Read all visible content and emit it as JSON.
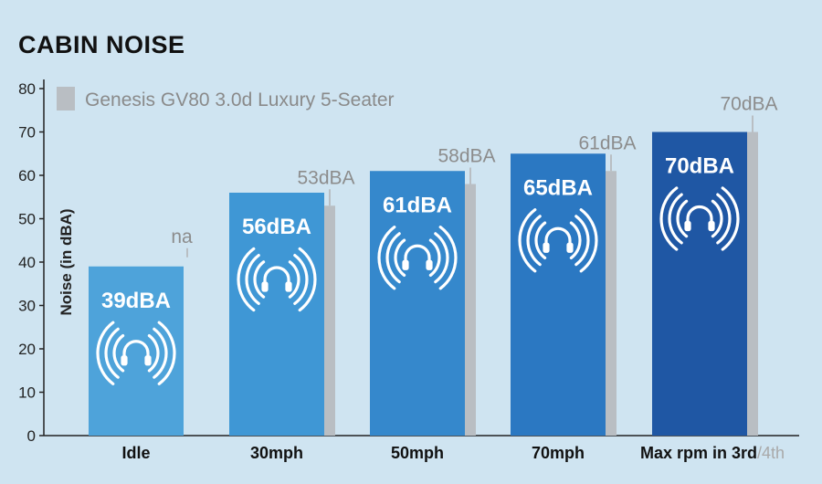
{
  "chart_data": {
    "type": "bar",
    "title": "CABIN NOISE",
    "ylabel": "Noise (in dBA)",
    "ylim": [
      0,
      80
    ],
    "yticks": [
      0,
      10,
      20,
      30,
      40,
      50,
      60,
      70,
      80
    ],
    "categories": [
      "Idle",
      "30mph",
      "50mph",
      "70mph",
      "Max rpm in 3rd"
    ],
    "category_suffix": {
      "index": 4,
      "text": "/4th"
    },
    "grid": false,
    "legend": {
      "position": "top-left"
    },
    "series": [
      {
        "values": [
          39,
          56,
          61,
          65,
          70
        ],
        "labels": [
          "39dBA",
          "56dBA",
          "61dBA",
          "65dBA",
          "70dBA"
        ],
        "colors": [
          "#4ea3da",
          "#3f97d5",
          "#3588cc",
          "#2b78c2",
          "#1f57a4"
        ]
      },
      {
        "name": "Genesis GV80 3.0d Luxury 5-Seater",
        "values": [
          null,
          53,
          58,
          61,
          70
        ],
        "labels": [
          "na",
          "53dBA",
          "58dBA",
          "61dBA",
          "70dBA"
        ],
        "color": "#b9bec3"
      }
    ],
    "icon": "headphones-sound-icon"
  }
}
